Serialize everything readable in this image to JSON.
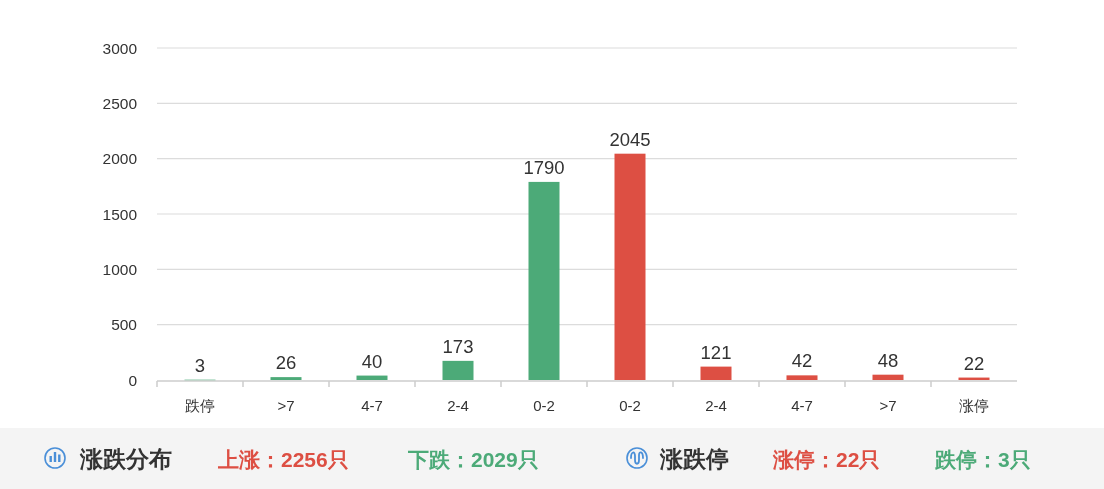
{
  "chart_data": {
    "type": "bar",
    "categories": [
      "跌停",
      ">7",
      "4-7",
      "2-4",
      "0-2",
      "0-2",
      "2-4",
      "4-7",
      ">7",
      "涨停"
    ],
    "values": [
      3,
      26,
      40,
      173,
      1790,
      2045,
      121,
      42,
      48,
      22
    ],
    "colors": [
      "#4caa78",
      "#4caa78",
      "#4caa78",
      "#4caa78",
      "#4caa78",
      "#dd4f43",
      "#dd4f43",
      "#dd4f43",
      "#dd4f43",
      "#dd4f43"
    ],
    "ylim": [
      0,
      3000
    ],
    "yticks": [
      0,
      500,
      1000,
      1500,
      2000,
      2500,
      3000
    ],
    "grid": "y",
    "data_labels": true,
    "annotations": [
      "涨跌分布",
      "上涨：2256只",
      "下跌：2029只",
      "涨跌停",
      "涨停：22只",
      "跌停：3只"
    ]
  }
}
